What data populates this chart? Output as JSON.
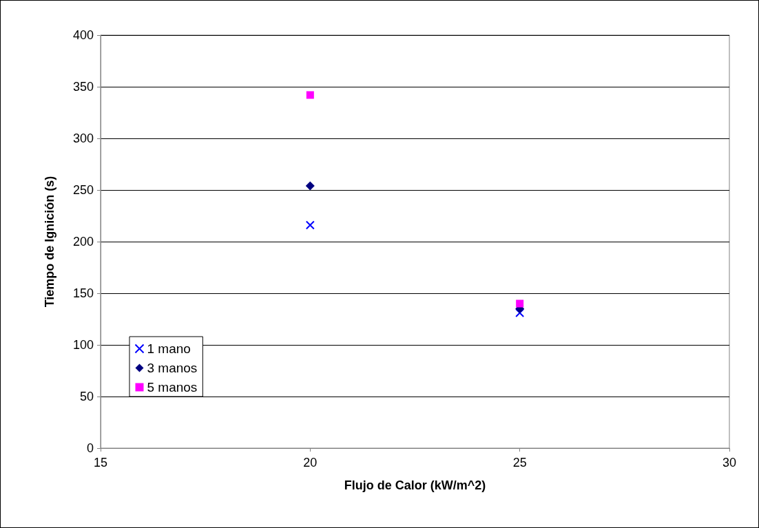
{
  "chart_data": {
    "type": "scatter",
    "xlabel": "Flujo de Calor (kW/m^2)",
    "ylabel": "Tiempo de Ignición (s)",
    "xlim": [
      15,
      30
    ],
    "xticks": [
      15,
      20,
      25,
      30
    ],
    "ylim": [
      0,
      400
    ],
    "yticks": [
      0,
      50,
      100,
      150,
      200,
      250,
      300,
      350,
      400
    ],
    "grid": "y",
    "legend": "bottom left",
    "x": [
      20,
      25
    ],
    "series": [
      {
        "name": "1 mano",
        "color": "#0000ff",
        "marker": "cross",
        "values": [
          216,
          131
        ]
      },
      {
        "name": "3 manos",
        "color": "#000080",
        "marker": "diamond",
        "values": [
          254,
          135
        ]
      },
      {
        "name": "5 manos",
        "color": "#ff00ff",
        "marker": "square",
        "values": [
          342,
          140
        ]
      }
    ]
  }
}
